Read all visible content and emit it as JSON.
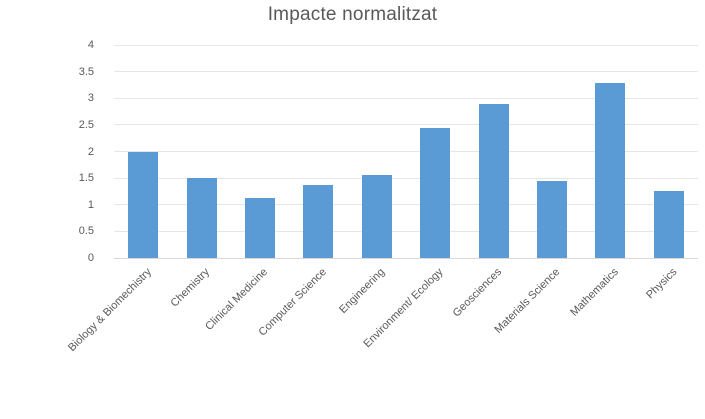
{
  "chart_data": {
    "type": "bar",
    "title": "Impacte normalitzat",
    "categories": [
      "Biology & Biomechistry",
      "Chemistry",
      "Clinical Medicine",
      "Computer Science",
      "Engineering",
      "Environment/ Ecology",
      "Geosciences",
      "Materials Science",
      "Mathematics",
      "Physics"
    ],
    "values": [
      2.0,
      1.5,
      1.12,
      1.38,
      1.55,
      2.44,
      2.89,
      1.44,
      3.29,
      1.25
    ],
    "xlabel": "",
    "ylabel": "",
    "ylim": [
      0,
      4
    ],
    "yticks": [
      0,
      0.5,
      1,
      1.5,
      2,
      2.5,
      3,
      3.5,
      4
    ],
    "grid": true,
    "legend": false,
    "x_label_rotation_deg": 45,
    "bar_color": "#5b9bd5",
    "text_color": "#595959",
    "gridline_color": "#e6e6e6"
  }
}
